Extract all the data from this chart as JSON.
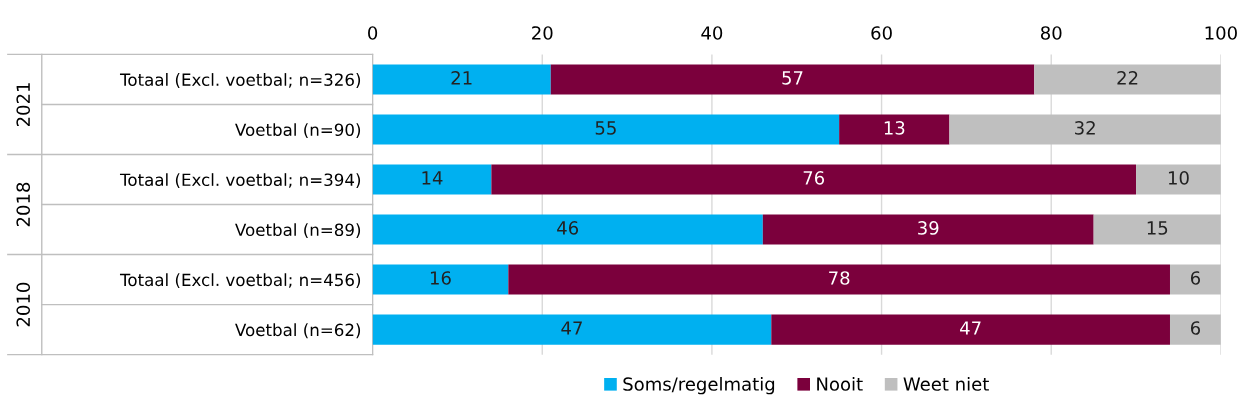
{
  "chart_data": {
    "type": "bar",
    "orientation": "horizontal",
    "stacked": true,
    "categories": [
      "Totaal (Excl. voetbal; n=326)",
      "Voetbal (n=90)",
      "Totaal (Excl. voetbal; n=394)",
      "Voetbal (n=89)",
      "Totaal (Excl. voetbal; n=456)",
      "Voetbal (n=62)"
    ],
    "series": [
      {
        "name": "Soms/regelmatig",
        "color": "#00b0f0",
        "values": [
          21,
          55,
          14,
          46,
          16,
          47
        ]
      },
      {
        "name": "Nooit",
        "color": "#7b003c",
        "values": [
          57,
          13,
          76,
          39,
          78,
          47
        ]
      },
      {
        "name": "Weet niet",
        "color": "#bfbfbf",
        "values": [
          22,
          32,
          10,
          15,
          6,
          6
        ]
      }
    ],
    "annotations": [
      "2021",
      "2018",
      "2010"
    ],
    "xlim": [
      0,
      100
    ],
    "xticks": [
      0,
      20,
      40,
      60,
      80,
      100
    ],
    "grid": "x",
    "legend": "bottom",
    "data_labels": true
  }
}
